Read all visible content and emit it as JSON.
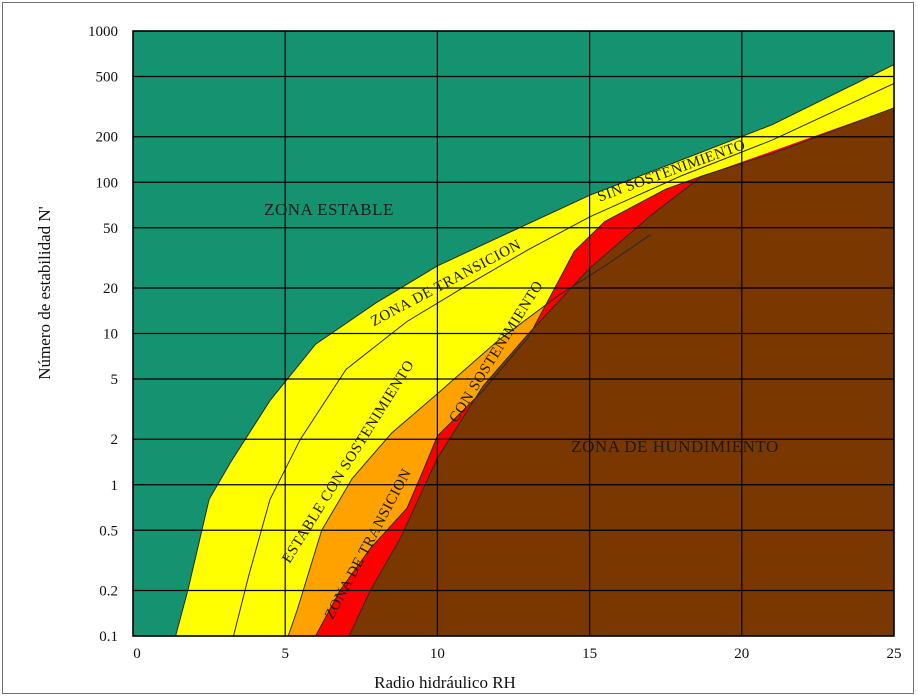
{
  "chart_data": {
    "type": "area",
    "xlabel": "Radio hidráulico RH",
    "ylabel": "Número de estabilidad N'",
    "xlim": [
      0,
      25
    ],
    "ylim": [
      0.1,
      1000
    ],
    "yscale": "log",
    "grid": true,
    "x_ticks": [
      "0",
      "5",
      "10",
      "15",
      "20",
      "25"
    ],
    "y_ticks": [
      "0.1",
      "0.2",
      "0.5",
      "1",
      "2",
      "5",
      "10",
      "20",
      "50",
      "100",
      "200",
      "500",
      "1000"
    ],
    "colors": {
      "estable": "#159270",
      "transicion_sin": "#ffff00",
      "estable_con": "#ffa200",
      "transicion_con": "#ff0000",
      "hundimiento": "#7b3700",
      "grid": "#000000"
    },
    "boundaries": [
      {
        "id": "b1",
        "points": [
          [
            1.4,
            0.1
          ],
          [
            1.8,
            0.2
          ],
          [
            2.5,
            0.8
          ],
          [
            3.2,
            1.4
          ],
          [
            4.5,
            3.6
          ],
          [
            6,
            8.5
          ],
          [
            8,
            16
          ],
          [
            10,
            28
          ],
          [
            12.5,
            48
          ],
          [
            15,
            82
          ],
          [
            18,
            140
          ],
          [
            21,
            240
          ],
          [
            25,
            600
          ]
        ]
      },
      {
        "id": "b2",
        "points": [
          [
            3.3,
            0.1
          ],
          [
            3.8,
            0.25
          ],
          [
            4.5,
            0.8
          ],
          [
            5.5,
            2
          ],
          [
            7,
            5.8
          ],
          [
            9,
            12
          ],
          [
            11,
            21
          ],
          [
            13,
            36
          ],
          [
            15,
            59
          ],
          [
            18,
            110
          ],
          [
            21,
            190
          ],
          [
            25,
            450
          ]
        ]
      },
      {
        "id": "b3",
        "points": [
          [
            5.1,
            0.1
          ],
          [
            5.4,
            0.15
          ],
          [
            6.2,
            0.5
          ],
          [
            7.2,
            1.1
          ],
          [
            8.5,
            2.2
          ],
          [
            10,
            4
          ],
          [
            12,
            9
          ],
          [
            14,
            18
          ],
          [
            15.5,
            28
          ],
          [
            17,
            45
          ]
        ]
      },
      {
        "id": "b4",
        "points": [
          [
            6,
            0.1
          ],
          [
            6.8,
            0.2
          ],
          [
            7.8,
            0.38
          ],
          [
            9,
            0.7
          ],
          [
            9.5,
            1.2
          ],
          [
            10,
            2.1
          ],
          [
            11.5,
            4.2
          ],
          [
            13,
            9.5
          ],
          [
            14.5,
            35
          ],
          [
            15.5,
            55
          ],
          [
            17.5,
            90
          ],
          [
            18.7,
            110
          ]
        ]
      },
      {
        "id": "b5",
        "points": [
          [
            7.1,
            0.1
          ],
          [
            7.8,
            0.2
          ],
          [
            8.8,
            0.45
          ],
          [
            10,
            1.5
          ],
          [
            11.5,
            4.5
          ],
          [
            13,
            10
          ],
          [
            15,
            27
          ],
          [
            17,
            60
          ],
          [
            18.7,
            110
          ],
          [
            21,
            155
          ],
          [
            25,
            310
          ]
        ]
      }
    ],
    "annotations": [
      {
        "text": "ZONA ESTABLE"
      },
      {
        "text": "ZONA DE TRANSICION"
      },
      {
        "text": "SIN SOSTENIMIENTO"
      },
      {
        "text": "ESTABLE CON SOSTENIMIENTO"
      },
      {
        "text": "ZONA DE TRANSICION"
      },
      {
        "text": "CON SOSTENIMIENTO"
      },
      {
        "text": "ZONA DE HUNDIMIENTO"
      }
    ]
  }
}
